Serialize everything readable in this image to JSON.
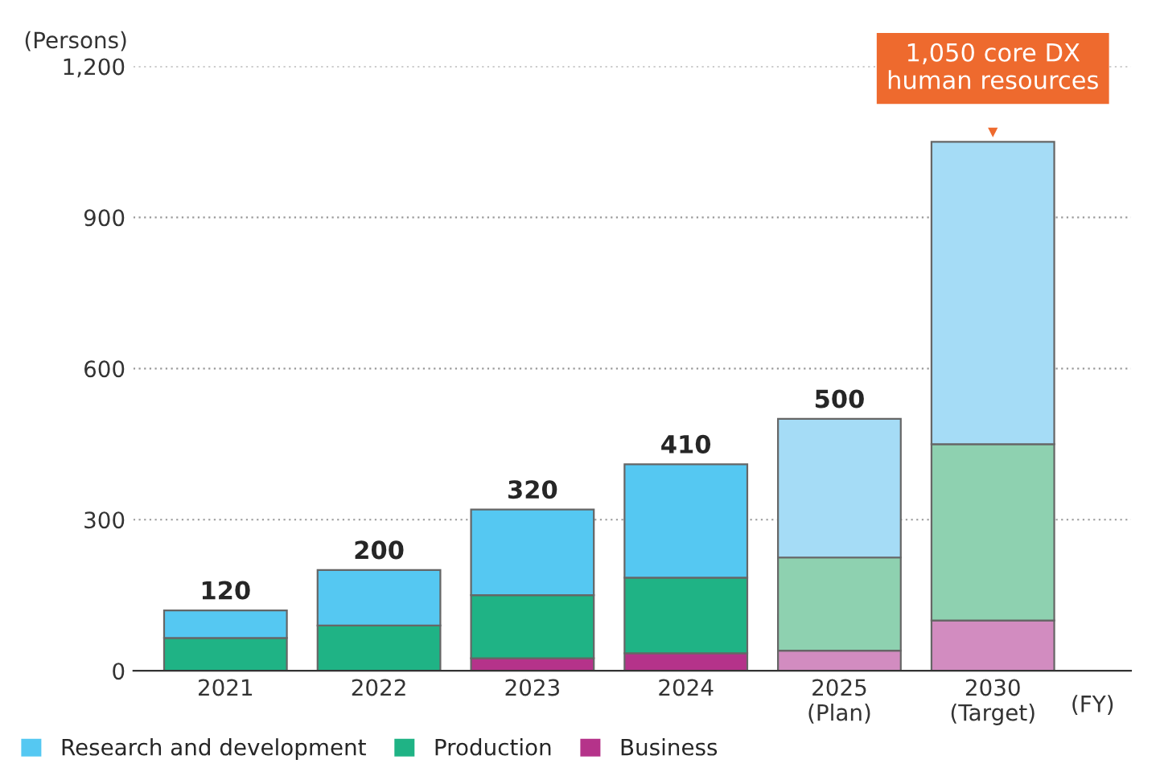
{
  "chart_data": {
    "type": "bar",
    "stacked": true,
    "ylabel": "(Persons)",
    "xlabel": "(FY)",
    "categories": [
      "2021",
      "2022",
      "2023",
      "2024",
      "2025\n(Plan)",
      "2030\n(Target)"
    ],
    "series": [
      {
        "name": "Business",
        "color": "#b5338a",
        "colors": [
          "#b5338a",
          "#b5338a",
          "#b5338a",
          "#b5338a",
          "#d28cc0",
          "#d28cc0"
        ],
        "values": [
          0,
          0,
          25,
          35,
          40,
          100
        ]
      },
      {
        "name": "Production",
        "color": "#1fb385",
        "colors": [
          "#1fb385",
          "#1fb385",
          "#1fb385",
          "#1fb385",
          "#8ed1b0",
          "#8ed1b0"
        ],
        "values": [
          65,
          90,
          125,
          150,
          185,
          350
        ]
      },
      {
        "name": "Research and development",
        "color": "#55c8f2",
        "colors": [
          "#55c8f2",
          "#55c8f2",
          "#55c8f2",
          "#55c8f2",
          "#a5dcf6",
          "#a5dcf6"
        ],
        "values": [
          55,
          110,
          170,
          225,
          275,
          600
        ]
      }
    ],
    "totals": [
      "120",
      "200",
      "320",
      "410",
      "500",
      null
    ],
    "annotations": [
      {
        "text": "1,050 core DX\nhuman resources",
        "x": "2030\n(Target)",
        "y": 1050
      }
    ],
    "ylim": [
      0,
      1200
    ],
    "yticks": [
      0,
      300,
      600,
      900,
      {
        "value": 1200,
        "label": "1,200"
      }
    ],
    "grid": "y",
    "legend": "bottom left"
  }
}
